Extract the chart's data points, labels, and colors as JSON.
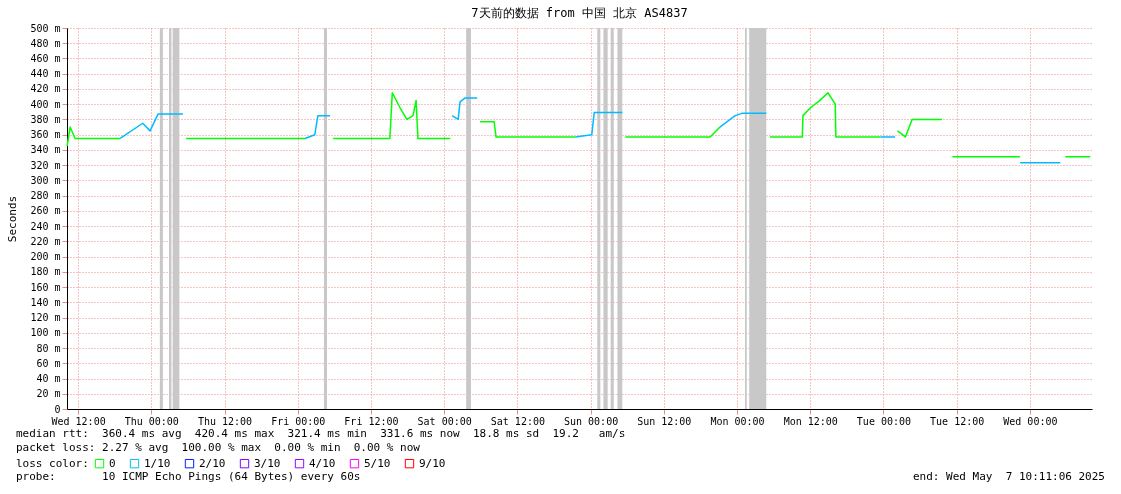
{
  "chart_data": {
    "type": "line",
    "title": "7天前的数据 from 中国 北京 AS4837",
    "ylabel": "Seconds",
    "legend_title": "loss color:",
    "legend": "bottom",
    "grid": true,
    "marker": "none",
    "line_style": "solid",
    "xlim": [
      "2025-04-30T10:11",
      "2025-05-07T10:11"
    ],
    "xticks": [
      {
        "value": "2025-04-30T12:00",
        "label": "Wed 12:00"
      },
      {
        "value": "2025-05-01T00:00",
        "label": "Thu 00:00"
      },
      {
        "value": "2025-05-01T12:00",
        "label": "Thu 12:00"
      },
      {
        "value": "2025-05-02T00:00",
        "label": "Fri 00:00"
      },
      {
        "value": "2025-05-02T12:00",
        "label": "Fri 12:00"
      },
      {
        "value": "2025-05-03T00:00",
        "label": "Sat 00:00"
      },
      {
        "value": "2025-05-03T12:00",
        "label": "Sat 12:00"
      },
      {
        "value": "2025-05-04T00:00",
        "label": "Sun 00:00"
      },
      {
        "value": "2025-05-04T12:00",
        "label": "Sun 12:00"
      },
      {
        "value": "2025-05-05T00:00",
        "label": "Mon 00:00"
      },
      {
        "value": "2025-05-05T12:00",
        "label": "Mon 12:00"
      },
      {
        "value": "2025-05-06T00:00",
        "label": "Tue 00:00"
      },
      {
        "value": "2025-05-06T12:00",
        "label": "Tue 12:00"
      },
      {
        "value": "2025-05-07T00:00",
        "label": "Wed 00:00"
      }
    ],
    "ylim": [
      0,
      500
    ],
    "yticks": [
      0,
      {
        "value": 20,
        "label": "20 m"
      },
      {
        "value": 40,
        "label": "40 m"
      },
      {
        "value": 60,
        "label": "60 m"
      },
      {
        "value": 80,
        "label": "80 m"
      },
      {
        "value": 100,
        "label": "100 m"
      },
      {
        "value": 120,
        "label": "120 m"
      },
      {
        "value": 140,
        "label": "140 m"
      },
      {
        "value": 160,
        "label": "160 m"
      },
      {
        "value": 180,
        "label": "180 m"
      },
      {
        "value": 200,
        "label": "200 m"
      },
      {
        "value": 220,
        "label": "220 m"
      },
      {
        "value": 240,
        "label": "240 m"
      },
      {
        "value": 260,
        "label": "260 m"
      },
      {
        "value": 280,
        "label": "280 m"
      },
      {
        "value": 300,
        "label": "300 m"
      },
      {
        "value": 320,
        "label": "320 m"
      },
      {
        "value": 340,
        "label": "340 m"
      },
      {
        "value": 360,
        "label": "360 m"
      },
      {
        "value": 380,
        "label": "380 m"
      },
      {
        "value": 400,
        "label": "400 m"
      },
      {
        "value": 420,
        "label": "420 m"
      },
      {
        "value": 440,
        "label": "440 m"
      },
      {
        "value": 460,
        "label": "460 m"
      },
      {
        "value": 480,
        "label": "480 m"
      },
      {
        "value": 500,
        "label": "500 m"
      }
    ],
    "bands": [
      {
        "axis": "x",
        "from": "2025-05-01T01:24",
        "to": "2025-05-01T01:54",
        "color": "#c8c8c8"
      },
      {
        "axis": "x",
        "from": "2025-05-01T02:54",
        "to": "2025-05-01T03:18",
        "color": "#c8c8c8"
      },
      {
        "axis": "x",
        "from": "2025-05-01T03:30",
        "to": "2025-05-01T04:36",
        "color": "#c8c8c8"
      },
      {
        "axis": "x",
        "from": "2025-05-02T04:18",
        "to": "2025-05-02T04:48",
        "color": "#c8c8c8"
      },
      {
        "axis": "x",
        "from": "2025-05-03T03:36",
        "to": "2025-05-03T04:24",
        "color": "#c8c8c8"
      },
      {
        "axis": "x",
        "from": "2025-05-04T01:06",
        "to": "2025-05-04T01:36",
        "color": "#c8c8c8"
      },
      {
        "axis": "x",
        "from": "2025-05-04T02:06",
        "to": "2025-05-04T02:48",
        "color": "#c8c8c8"
      },
      {
        "axis": "x",
        "from": "2025-05-04T03:18",
        "to": "2025-05-04T03:48",
        "color": "#c8c8c8"
      },
      {
        "axis": "x",
        "from": "2025-05-04T04:24",
        "to": "2025-05-04T05:12",
        "color": "#c8c8c8"
      },
      {
        "axis": "x",
        "from": "2025-05-05T01:18",
        "to": "2025-05-05T01:36",
        "color": "#c8c8c8"
      },
      {
        "axis": "x",
        "from": "2025-05-05T02:00",
        "to": "2025-05-05T04:48",
        "color": "#c8c8c8"
      }
    ],
    "series": [
      {
        "name": "0",
        "color": "#00ff00",
        "x": [
          "2025-04-30T10:12",
          "2025-04-30T10:42",
          "2025-04-30T11:30",
          "2025-04-30T18:54",
          "2025-04-30T19:30",
          "2025-05-01T05:42",
          "2025-05-02T01:12",
          "2025-05-02T02:00",
          "2025-05-02T05:48",
          "2025-05-02T15:06",
          "2025-05-02T15:30",
          "2025-05-02T16:48",
          "2025-05-02T17:54",
          "2025-05-02T18:54",
          "2025-05-02T19:24",
          "2025-05-02T19:42",
          "2025-05-03T01:00",
          "2025-05-03T01:12",
          "2025-05-03T05:54",
          "2025-05-03T08:12",
          "2025-05-03T08:30",
          "2025-05-03T21:30",
          "2025-05-03T23:00",
          "2025-05-04T05:42",
          "2025-05-04T19:36",
          "2025-05-04T21:12",
          "2025-05-04T22:00",
          "2025-05-05T05:24",
          "2025-05-05T10:42",
          "2025-05-05T10:48",
          "2025-05-05T12:00",
          "2025-05-05T13:36",
          "2025-05-05T14:54",
          "2025-05-05T16:06",
          "2025-05-05T16:12",
          "2025-05-05T23:30",
          "2025-05-06T00:00",
          "2025-05-06T02:18",
          "2025-05-06T03:36",
          "2025-05-06T04:42",
          "2025-05-06T09:36",
          "2025-05-06T10:00",
          "2025-05-06T11:18",
          "2025-05-06T22:24",
          "2025-05-06T23:00",
          "2025-05-07T05:48",
          "2025-05-07T09:54"
        ],
        "values": [
          345,
          370,
          355,
          355,
          null,
          355,
          355,
          null,
          355,
          355,
          415,
          395,
          380,
          385,
          405,
          355,
          355,
          null,
          377,
          377,
          357,
          357,
          null,
          357,
          357,
          370,
          null,
          357,
          357,
          385,
          395,
          405,
          415,
          400,
          357,
          357,
          null,
          365,
          357,
          380,
          380,
          null,
          331,
          331,
          null,
          331,
          331
        ]
      },
      {
        "name": "1/10",
        "color": "#00bbff",
        "x": [
          "2025-04-30T18:54",
          "2025-04-30T22:36",
          "2025-04-30T23:48",
          "2025-05-01T01:06",
          "2025-05-01T05:12",
          "2025-05-01T05:30",
          "2025-05-02T01:12",
          "2025-05-02T02:48",
          "2025-05-02T03:18",
          "2025-05-02T05:18",
          "2025-05-02T05:30",
          "2025-05-03T01:18",
          "2025-05-03T02:18",
          "2025-05-03T02:36",
          "2025-05-03T03:24",
          "2025-05-03T05:24",
          "2025-05-03T05:36",
          "2025-05-03T21:30",
          "2025-05-04T00:12",
          "2025-05-04T00:36",
          "2025-05-04T05:12",
          "2025-05-04T05:30",
          "2025-05-04T21:12",
          "2025-05-04T23:42",
          "2025-05-05T00:48",
          "2025-05-05T04:48",
          "2025-05-05T05:00",
          "2025-05-05T23:30",
          "2025-05-06T01:54",
          "2025-05-06T02:00",
          "2025-05-06T22:24",
          "2025-05-07T05:00"
        ],
        "values": [
          355,
          375,
          365,
          387,
          387,
          null,
          355,
          360,
          385,
          385,
          null,
          385,
          380,
          403,
          408,
          408,
          null,
          357,
          360,
          389,
          389,
          null,
          370,
          385,
          388,
          388,
          null,
          357,
          357,
          null,
          323,
          323
        ]
      },
      {
        "name": "2/10",
        "color": "#0022ff"
      },
      {
        "name": "3/10",
        "color": "#8a00ff"
      },
      {
        "name": "4/10",
        "color": "#a000ff"
      },
      {
        "name": "5/10",
        "color": "#ff00ff"
      },
      {
        "name": "9/10",
        "color": "#ff0000"
      }
    ],
    "annotations": [
      "median rtt:  360.4 ms avg  420.4 ms max  321.4 ms min  331.6 ms now  18.8 ms sd  19.2   am/s",
      "packet loss: 2.27 % avg  100.00 % max  0.00 % min  0.00 % now",
      "probe:       10 ICMP Echo Pings (64 Bytes) every 60s",
      "end: Wed May  7 10:11:06 2025"
    ]
  }
}
